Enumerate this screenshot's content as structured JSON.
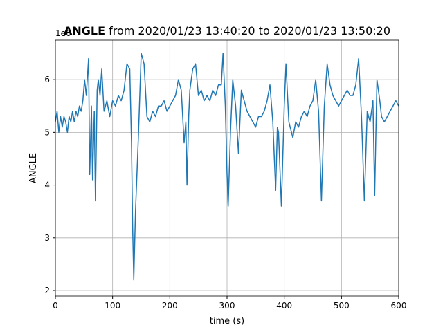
{
  "chart_data": {
    "type": "line",
    "title": {
      "bold": "ANGLE",
      "text": "from 2020/01/23 13:40:20 to 2020/01/23 13:50:20"
    },
    "x_label": "time (s)",
    "y_label": "ANGLE",
    "y_offset_text": "1e6",
    "x": [
      0,
      3,
      6,
      9,
      12,
      15,
      18,
      21,
      24,
      27,
      30,
      33,
      36,
      39,
      42,
      45,
      48,
      51,
      54,
      58,
      60,
      63,
      65,
      68,
      70,
      73,
      75,
      78,
      81,
      85,
      90,
      95,
      100,
      105,
      110,
      115,
      120,
      125,
      130,
      133,
      135,
      137,
      140,
      145,
      150,
      155,
      160,
      165,
      170,
      175,
      180,
      185,
      190,
      195,
      200,
      205,
      210,
      215,
      220,
      225,
      228,
      230,
      233,
      235,
      240,
      245,
      250,
      255,
      260,
      265,
      270,
      275,
      280,
      285,
      290,
      293,
      297,
      300,
      302,
      306,
      310,
      315,
      320,
      325,
      330,
      335,
      340,
      345,
      350,
      355,
      360,
      365,
      370,
      375,
      380,
      385,
      388,
      390,
      395,
      400,
      403,
      408,
      415,
      420,
      425,
      430,
      435,
      440,
      445,
      450,
      455,
      460,
      465,
      470,
      475,
      480,
      485,
      490,
      495,
      500,
      505,
      510,
      515,
      520,
      525,
      530,
      535,
      540,
      545,
      550,
      555,
      558,
      562,
      567,
      570,
      575,
      580,
      585,
      590,
      595,
      600
    ],
    "series": [
      {
        "name": "ANGLE",
        "color": "#1f77b4",
        "values": [
          5.2,
          5.4,
          5.0,
          5.3,
          5.1,
          5.3,
          5.2,
          5.0,
          5.3,
          5.2,
          5.4,
          5.2,
          5.4,
          5.3,
          5.5,
          5.4,
          5.6,
          6.0,
          5.7,
          6.4,
          4.2,
          5.5,
          4.1,
          5.4,
          3.7,
          5.8,
          6.0,
          5.7,
          6.2,
          5.4,
          5.6,
          5.3,
          5.6,
          5.5,
          5.7,
          5.6,
          5.8,
          6.3,
          6.2,
          4.8,
          3.2,
          2.2,
          3.5,
          4.9,
          6.5,
          6.3,
          5.3,
          5.2,
          5.4,
          5.3,
          5.5,
          5.5,
          5.6,
          5.4,
          5.5,
          5.6,
          5.7,
          6.0,
          5.8,
          4.8,
          5.2,
          4.0,
          5.3,
          5.8,
          6.2,
          6.3,
          5.7,
          5.8,
          5.6,
          5.7,
          5.6,
          5.8,
          5.7,
          5.9,
          5.9,
          6.5,
          5.5,
          4.2,
          3.6,
          5.0,
          6.0,
          5.5,
          4.6,
          5.8,
          5.6,
          5.4,
          5.3,
          5.2,
          5.1,
          5.3,
          5.3,
          5.4,
          5.6,
          5.9,
          5.2,
          3.9,
          5.1,
          5.0,
          3.6,
          5.5,
          6.3,
          5.2,
          4.9,
          5.2,
          5.1,
          5.3,
          5.4,
          5.3,
          5.5,
          5.6,
          6.0,
          5.4,
          3.7,
          5.5,
          6.3,
          5.9,
          5.7,
          5.6,
          5.5,
          5.6,
          5.7,
          5.8,
          5.7,
          5.7,
          5.9,
          6.4,
          5.3,
          3.7,
          5.4,
          5.2,
          5.6,
          3.8,
          6.0,
          5.6,
          5.3,
          5.2,
          5.3,
          5.4,
          5.5,
          5.6,
          5.5
        ]
      }
    ],
    "xlim": [
      0,
      600
    ],
    "xticks": [
      0,
      100,
      200,
      300,
      400,
      500,
      600
    ],
    "ylim": [
      1.895,
      6.75
    ],
    "yticks": [
      2,
      3,
      4,
      5,
      6
    ],
    "grid": true
  }
}
